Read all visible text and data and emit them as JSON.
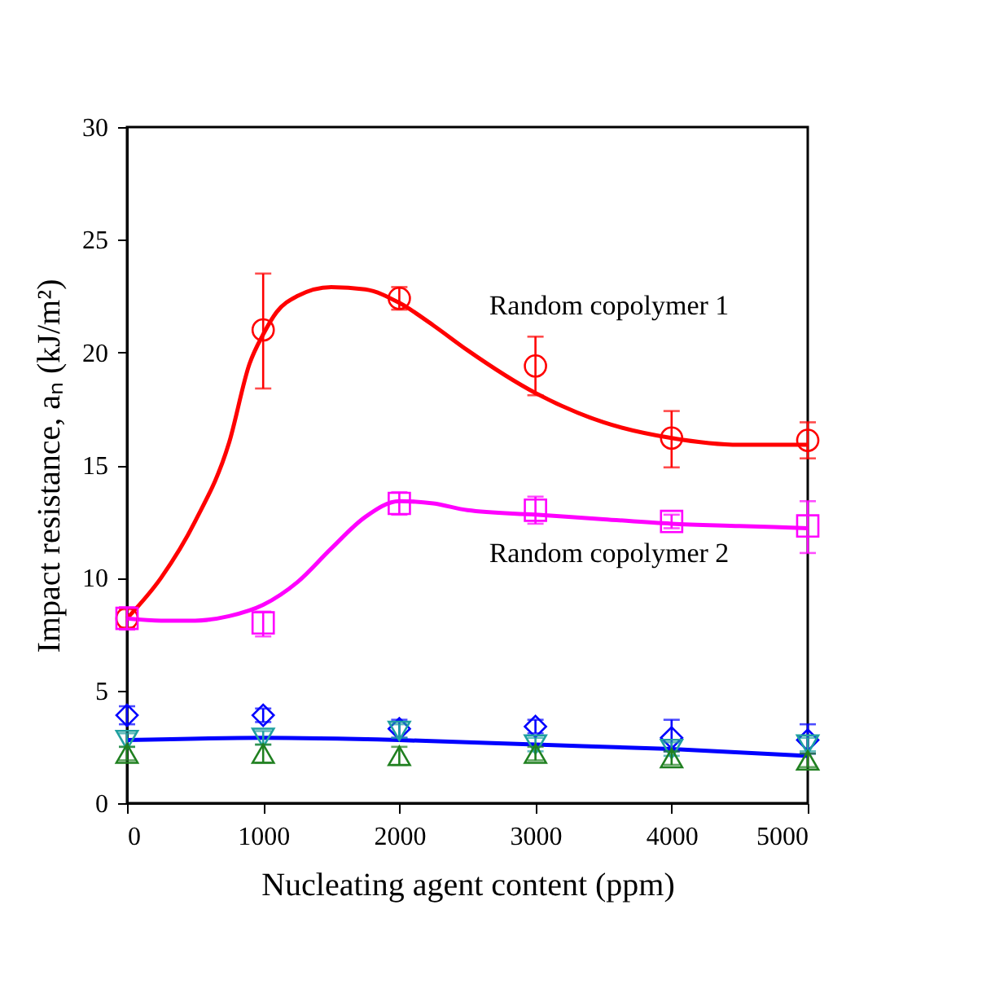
{
  "chart_data": {
    "type": "scatter",
    "xlabel": "Nucleating agent content (ppm)",
    "ylabel": "Impact resistance, aₙ (kJ/m²)",
    "x": [
      0,
      1000,
      2000,
      3000,
      4000,
      5000
    ],
    "xlim": [
      0,
      5000
    ],
    "xticks": [
      0,
      1000,
      2000,
      3000,
      4000,
      5000
    ],
    "ylim": [
      0,
      30
    ],
    "yticks": [
      0,
      5,
      10,
      15,
      20,
      25,
      30
    ],
    "grid": false,
    "series": [
      {
        "type": "line",
        "color": "#ff0000",
        "x": [
          0,
          250,
          500,
          750,
          900,
          1000,
          1100,
          1250,
          1500,
          1750,
          2000,
          2250,
          2500,
          3000,
          3500,
          4000,
          4500,
          5000
        ],
        "values": [
          8.2,
          10,
          12.5,
          16,
          19.5,
          20.8,
          21.8,
          22.5,
          22.9,
          22.8,
          22.2,
          21.2,
          20.1,
          18.2,
          16.9,
          16.2,
          15.9,
          15.9
        ]
      },
      {
        "type": "line",
        "color": "#ff00ff",
        "x": [
          0,
          250,
          500,
          750,
          1000,
          1250,
          1500,
          1750,
          2000,
          2250,
          2500,
          3000,
          3500,
          4000,
          4500,
          5000
        ],
        "values": [
          8.2,
          8.1,
          8.1,
          8.3,
          8.8,
          9.8,
          11.3,
          12.7,
          13.4,
          13.3,
          13.0,
          12.8,
          12.6,
          12.4,
          12.3,
          12.2
        ]
      },
      {
        "type": "line",
        "color": "#0000ff",
        "x": [
          0,
          1000,
          2000,
          3000,
          4000,
          5000
        ],
        "values": [
          2.8,
          2.9,
          2.8,
          2.6,
          2.4,
          2.1
        ]
      },
      {
        "marker": "circle",
        "color": "#ff0000",
        "values": [
          8.2,
          21.0,
          22.4,
          19.4,
          16.2,
          16.1
        ],
        "errors": [
          0.4,
          [
            18.4,
            23.5
          ],
          0.5,
          [
            18.1,
            20.7
          ],
          [
            14.9,
            17.4
          ],
          [
            15.3,
            16.9
          ]
        ]
      },
      {
        "marker": "square",
        "color": "#ff00ff",
        "values": [
          8.2,
          8.0,
          13.3,
          13.0,
          12.5,
          12.3
        ],
        "errors": [
          0.5,
          [
            7.4,
            8.5
          ],
          0.5,
          0.6,
          0.3,
          [
            11.1,
            13.4
          ]
        ]
      },
      {
        "marker": "diamond",
        "color": "#0000ff",
        "values": [
          3.9,
          3.9,
          3.3,
          3.4,
          2.9,
          2.8
        ],
        "errors": [
          0.4,
          0.3,
          0.4,
          0.3,
          [
            2.3,
            3.7
          ],
          [
            2.2,
            3.5
          ]
        ]
      },
      {
        "marker": "triangle-down",
        "color": "#20a0a0",
        "values": [
          2.8,
          2.9,
          3.2,
          2.6,
          2.4,
          2.6
        ],
        "errors": [
          0.3,
          0.3,
          0.3,
          0.3,
          0.3,
          0.3
        ]
      },
      {
        "marker": "triangle",
        "color": "#208020",
        "values": [
          2.2,
          2.2,
          2.1,
          2.2,
          2.0,
          1.9
        ],
        "errors": [
          0.3,
          0.4,
          0.4,
          0.3,
          0.3,
          0.3
        ]
      }
    ],
    "annotations": [
      "Random copolymer 1",
      "Random copolymer 2"
    ]
  }
}
